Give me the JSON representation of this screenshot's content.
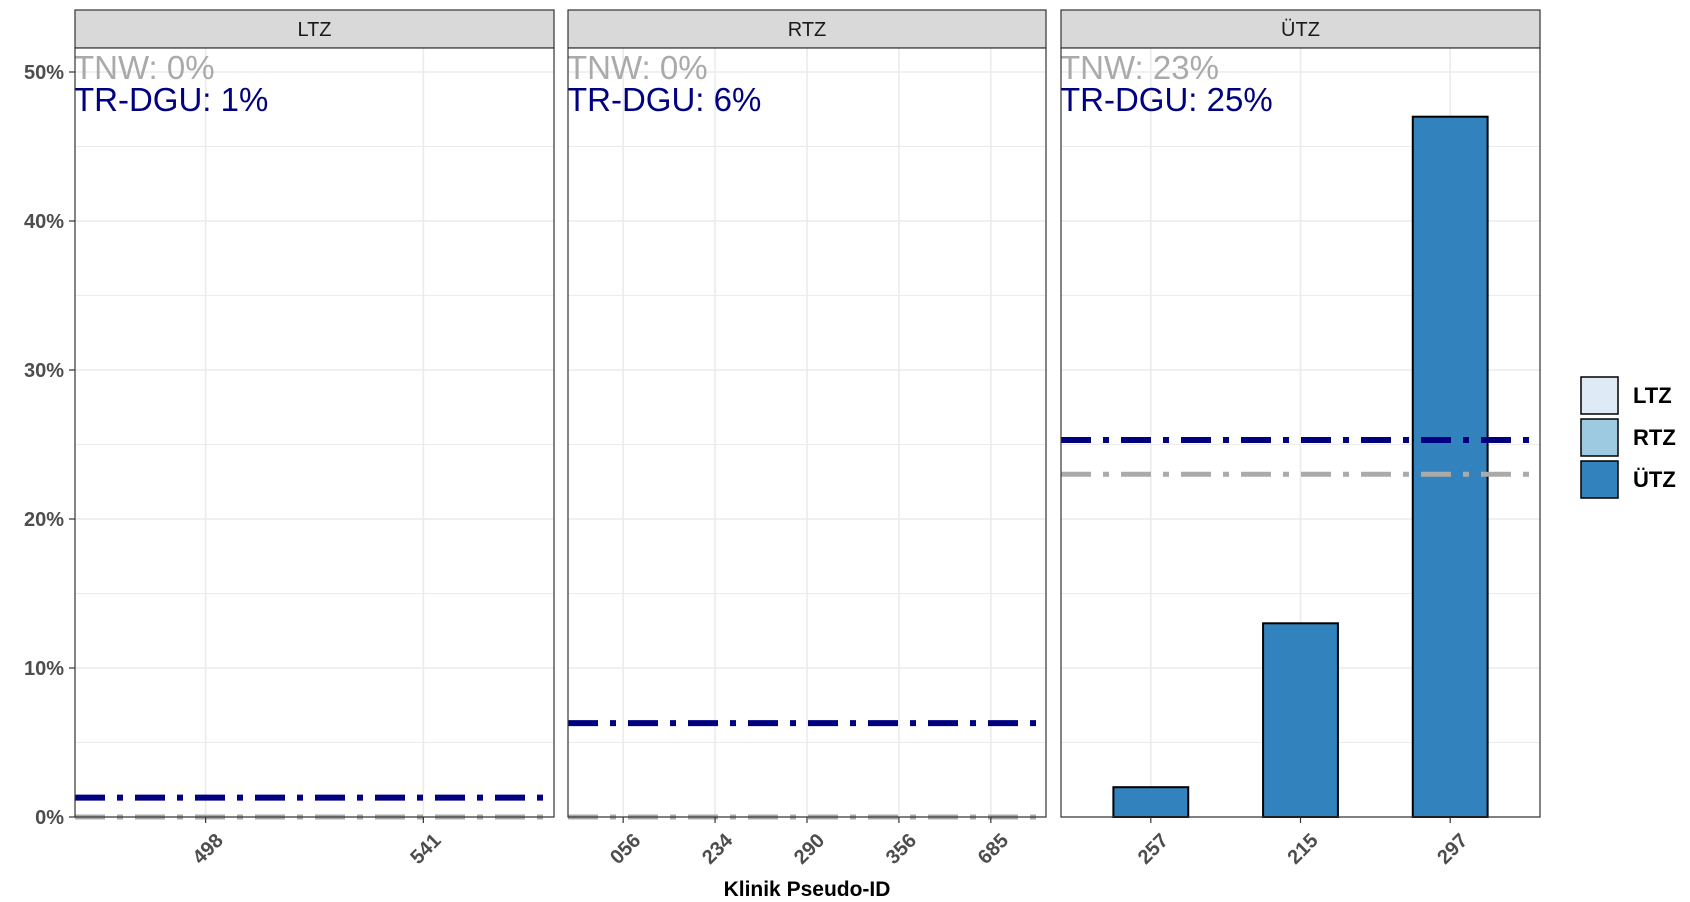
{
  "chart_data": {
    "type": "bar",
    "xlabel": "Klinik Pseudo-ID",
    "ylabel": "",
    "ylim": [
      0,
      0.52
    ],
    "y_ticks": [
      0,
      0.1,
      0.2,
      0.3,
      0.4,
      0.5
    ],
    "y_tick_labels": [
      "0%",
      "10%",
      "20%",
      "30%",
      "40%",
      "50%"
    ],
    "grid": true,
    "legend_position": "right",
    "legend": [
      {
        "label": "LTZ",
        "color": "#deebf7"
      },
      {
        "label": "RTZ",
        "color": "#9ecae1"
      },
      {
        "label": "ÜTZ",
        "color": "#3182bd"
      }
    ],
    "reference_lines": {
      "tnw_color": "#aaaaaa",
      "trdgu_color": "#000080"
    },
    "panels": [
      {
        "name": "LTZ",
        "categories": [
          "498",
          "541"
        ],
        "values": [
          0,
          0
        ],
        "fill": "#deebf7",
        "tnw_value": 0.0,
        "trdgu_value": 0.013,
        "tnw_label": "TNW: 0%",
        "trdgu_label": "TR-DGU: 1%"
      },
      {
        "name": "RTZ",
        "categories": [
          "056",
          "234",
          "290",
          "356",
          "685"
        ],
        "values": [
          0,
          0,
          0,
          0,
          0
        ],
        "fill": "#9ecae1",
        "tnw_value": 0.0,
        "trdgu_value": 0.063,
        "tnw_label": "TNW: 0%",
        "trdgu_label": "TR-DGU: 6%"
      },
      {
        "name": "ÜTZ",
        "categories": [
          "257",
          "215",
          "297"
        ],
        "values": [
          0.02,
          0.13,
          0.47
        ],
        "fill": "#3182bd",
        "tnw_value": 0.23,
        "trdgu_value": 0.253,
        "tnw_label": "TNW: 23%",
        "trdgu_label": "TR-DGU: 25%"
      }
    ]
  }
}
